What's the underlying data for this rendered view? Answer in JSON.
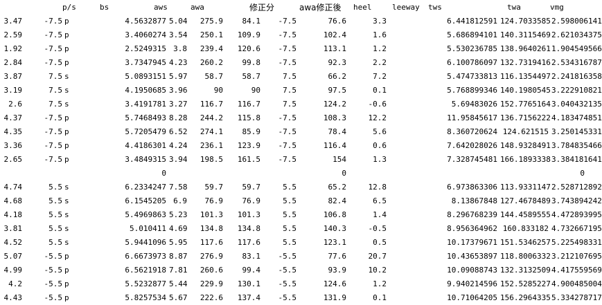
{
  "header": {
    "ps": "p/s",
    "bs": "bs",
    "aws": "aws",
    "awa": "awa",
    "correction": "修正分",
    "awa_corrected": "awa修正後",
    "heel": "heel",
    "leeway": "leeway",
    "tws": "tws",
    "twa": "twa",
    "vmg": "vmg"
  },
  "rows_group1": [
    {
      "id": "3.47",
      "angle": "-7.5",
      "ps": "p",
      "bs": "4.5632877",
      "aws": "5.04",
      "awa": "275.9",
      "corr": "84.1",
      "awa2": "-7.5",
      "ab": "76.6",
      "heel": "3.3",
      "leeway": "",
      "tws": "6.441812591",
      "twa": "124.7033585",
      "vmg": "2.598006141"
    },
    {
      "id": "2.59",
      "angle": "-7.5",
      "ps": "p",
      "bs": "3.4060274",
      "aws": "3.54",
      "awa": "250.1",
      "corr": "109.9",
      "awa2": "-7.5",
      "ab": "102.4",
      "heel": "1.6",
      "leeway": "",
      "tws": "5.686894101",
      "twa": "140.3115469",
      "vmg": "2.621034375"
    },
    {
      "id": "1.92",
      "angle": "-7.5",
      "ps": "p",
      "bs": "2.5249315",
      "aws": "3.8",
      "awa": "239.4",
      "corr": "120.6",
      "awa2": "-7.5",
      "ab": "113.1",
      "heel": "1.2",
      "leeway": "",
      "tws": "5.530236785",
      "twa": "138.9640261",
      "vmg": "1.904549566"
    },
    {
      "id": "2.84",
      "angle": "-7.5",
      "ps": "p",
      "bs": "3.7347945",
      "aws": "4.23",
      "awa": "260.2",
      "corr": "99.8",
      "awa2": "-7.5",
      "ab": "92.3",
      "heel": "2.2",
      "leeway": "",
      "tws": "6.100786097",
      "twa": "132.7319416",
      "vmg": "2.534316787"
    },
    {
      "id": "3.87",
      "angle": "7.5",
      "ps": "s",
      "bs": "5.0893151",
      "aws": "5.97",
      "awa": "58.7",
      "corr": "58.7",
      "awa2": "7.5",
      "ab": "66.2",
      "heel": "7.2",
      "leeway": "",
      "tws": "5.474733813",
      "twa": "116.1354497",
      "vmg": "2.241816358"
    },
    {
      "id": "3.19",
      "angle": "7.5",
      "ps": "s",
      "bs": "4.1950685",
      "aws": "3.96",
      "awa": "90",
      "corr": "90",
      "awa2": "7.5",
      "ab": "97.5",
      "heel": "0.1",
      "leeway": "",
      "tws": "5.768899346",
      "twa": "140.1980545",
      "vmg": "3.222910821"
    },
    {
      "id": "2.6",
      "angle": "7.5",
      "ps": "s",
      "bs": "3.4191781",
      "aws": "3.27",
      "awa": "116.7",
      "corr": "116.7",
      "awa2": "7.5",
      "ab": "124.2",
      "heel": "-0.6",
      "leeway": "",
      "tws": "5.69483026",
      "twa": "152.7765164",
      "vmg": "3.040432135"
    },
    {
      "id": "4.37",
      "angle": "-7.5",
      "ps": "p",
      "bs": "5.7468493",
      "aws": "8.28",
      "awa": "244.2",
      "corr": "115.8",
      "awa2": "-7.5",
      "ab": "108.3",
      "heel": "12.2",
      "leeway": "",
      "tws": "11.95845617",
      "twa": "136.7156222",
      "vmg": "4.183474851"
    },
    {
      "id": "4.35",
      "angle": "-7.5",
      "ps": "p",
      "bs": "5.7205479",
      "aws": "6.52",
      "awa": "274.1",
      "corr": "85.9",
      "awa2": "-7.5",
      "ab": "78.4",
      "heel": "5.6",
      "leeway": "",
      "tws": "8.360720624",
      "twa": "124.621515",
      "vmg": "3.250145331"
    },
    {
      "id": "3.36",
      "angle": "-7.5",
      "ps": "p",
      "bs": "4.4186301",
      "aws": "4.24",
      "awa": "236.1",
      "corr": "123.9",
      "awa2": "-7.5",
      "ab": "116.4",
      "heel": "0.6",
      "leeway": "",
      "tws": "7.642028026",
      "twa": "148.9328491",
      "vmg": "3.784835466"
    },
    {
      "id": "2.65",
      "angle": "-7.5",
      "ps": "p",
      "bs": "3.4849315",
      "aws": "3.94",
      "awa": "198.5",
      "corr": "161.5",
      "awa2": "-7.5",
      "ab": "154",
      "heel": "1.3",
      "leeway": "",
      "tws": "7.328745481",
      "twa": "166.1893338",
      "vmg": "3.384181641"
    }
  ],
  "zero_row": {
    "bs": "0",
    "ab": "0",
    "vmg": "0"
  },
  "rows_group2": [
    {
      "id": "4.74",
      "angle": "5.5",
      "ps": "s",
      "bs": "6.2334247",
      "aws": "7.58",
      "awa": "59.7",
      "corr": "59.7",
      "awa2": "5.5",
      "ab": "65.2",
      "heel": "12.8",
      "leeway": "",
      "tws": "6.973863306",
      "twa": "113.9331147",
      "vmg": "2.528712892"
    },
    {
      "id": "4.68",
      "angle": "5.5",
      "ps": "s",
      "bs": "6.1545205",
      "aws": "6.9",
      "awa": "76.9",
      "corr": "76.9",
      "awa2": "5.5",
      "ab": "82.4",
      "heel": "6.5",
      "leeway": "",
      "tws": "8.13867848",
      "twa": "127.4678489",
      "vmg": "3.743894242"
    },
    {
      "id": "4.18",
      "angle": "5.5",
      "ps": "s",
      "bs": "5.4969863",
      "aws": "5.23",
      "awa": "101.3",
      "corr": "101.3",
      "awa2": "5.5",
      "ab": "106.8",
      "heel": "1.4",
      "leeway": "",
      "tws": "8.296768239",
      "twa": "144.4589555",
      "vmg": "4.472893995"
    },
    {
      "id": "3.81",
      "angle": "5.5",
      "ps": "s",
      "bs": "5.010411",
      "aws": "4.69",
      "awa": "134.8",
      "corr": "134.8",
      "awa2": "5.5",
      "ab": "140.3",
      "heel": "-0.5",
      "leeway": "",
      "tws": "8.956364962",
      "twa": "160.833182",
      "vmg": "4.732667195"
    },
    {
      "id": "4.52",
      "angle": "5.5",
      "ps": "s",
      "bs": "5.9441096",
      "aws": "5.95",
      "awa": "117.6",
      "corr": "117.6",
      "awa2": "5.5",
      "ab": "123.1",
      "heel": "0.5",
      "leeway": "",
      "tws": "10.17379671",
      "twa": "151.5346257",
      "vmg": "5.225498331"
    },
    {
      "id": "5.07",
      "angle": "-5.5",
      "ps": "p",
      "bs": "6.6673973",
      "aws": "8.87",
      "awa": "276.9",
      "corr": "83.1",
      "awa2": "-5.5",
      "ab": "77.6",
      "heel": "20.7",
      "leeway": "",
      "tws": "10.43653897",
      "twa": "118.8006332",
      "vmg": "3.212107695"
    },
    {
      "id": "4.99",
      "angle": "-5.5",
      "ps": "p",
      "bs": "6.5621918",
      "aws": "7.81",
      "awa": "260.6",
      "corr": "99.4",
      "awa2": "-5.5",
      "ab": "93.9",
      "heel": "10.2",
      "leeway": "",
      "tws": "10.09088743",
      "twa": "132.3132509",
      "vmg": "4.417559569"
    },
    {
      "id": "4.2",
      "angle": "-5.5",
      "ps": "p",
      "bs": "5.5232877",
      "aws": "5.44",
      "awa": "229.9",
      "corr": "130.1",
      "awa2": "-5.5",
      "ab": "124.6",
      "heel": "1.2",
      "leeway": "",
      "tws": "9.940214596",
      "twa": "152.5285227",
      "vmg": "4.900485004"
    },
    {
      "id": "4.43",
      "angle": "-5.5",
      "ps": "p",
      "bs": "5.8257534",
      "aws": "5.67",
      "awa": "222.6",
      "corr": "137.4",
      "awa2": "-5.5",
      "ab": "131.9",
      "heel": "0.1",
      "leeway": "",
      "tws": "10.71064205",
      "twa": "156.2964335",
      "vmg": "5.334278717"
    }
  ]
}
